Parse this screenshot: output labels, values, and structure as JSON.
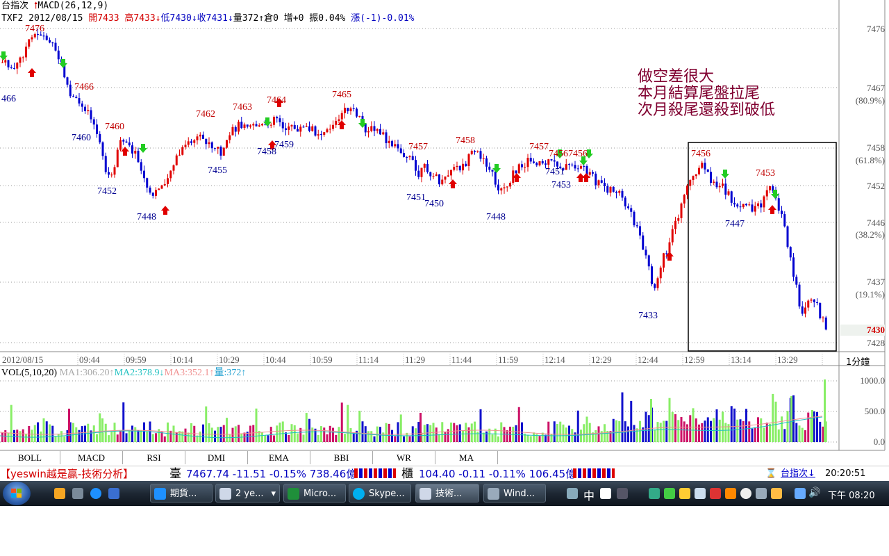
{
  "header": {
    "line1_name": "台指次",
    "line1_ind": "MACD(26,12,9)",
    "line2_sym": "TXF2 2012/08/15",
    "open": "開7433",
    "high": "高7433↓",
    "low": "低7430↓",
    "close": "收7431↓",
    "vol": "量372↑",
    "pos": "倉0",
    "inc": "增+0",
    "amp": "振0.04%",
    "chg": "漲(-1)-0.01%"
  },
  "annotation": {
    "line1": "做空差很大",
    "line2": "本月結算尾盤拉尾",
    "line3": "次月殺尾還殺到破低"
  },
  "y_axis": {
    "ticks": [
      "7476",
      "7467",
      "7458",
      "7452",
      "7446",
      "7437",
      "7428"
    ],
    "fib": [
      "(80.9%)",
      "(61.8%)",
      "(38.2%)",
      "(19.1%)"
    ],
    "current": "7430"
  },
  "x_axis": {
    "date": "2012/08/15",
    "ticks": [
      "09:44",
      "09:59",
      "10:14",
      "10:29",
      "10:44",
      "10:59",
      "11:14",
      "11:29",
      "11:44",
      "11:59",
      "12:14",
      "12:29",
      "12:44",
      "12:59",
      "13:14",
      "13:29"
    ],
    "period": "1分鐘"
  },
  "price_labels": {
    "highs": [
      "7476",
      "7466",
      "7460",
      "7462",
      "7463",
      "7464",
      "7465",
      "7457",
      "7458",
      "7457",
      "7456",
      "7456",
      "7456",
      "7453"
    ],
    "lows": [
      "466",
      "7460",
      "7452",
      "7448",
      "7455",
      "7458",
      "7459",
      "7451",
      "7450",
      "7448",
      "7451",
      "7453",
      "7433",
      "7447"
    ]
  },
  "volume": {
    "title": "VOL(5,10,20)",
    "ma1": "MA1:306.20↑",
    "ma2": "MA2:378.9↓",
    "ma3": "MA3:352.1↑",
    "amount": "量:372↑",
    "ticks": [
      "1000.0",
      "500.0",
      "0.0"
    ]
  },
  "tabs": [
    "BOLL",
    "MACD",
    "RSI",
    "DMI",
    "EMA",
    "BBI",
    "WR",
    "MA"
  ],
  "ticker": {
    "brand": "【yeswin越是贏-技術分析】",
    "twse_label": "臺",
    "twse": "7467.74 -11.51 -0.15% 738.46億",
    "otc_label": "櫃",
    "otc": "104.40 -0.11 -0.11% 106.45億",
    "selector": "台指次↓",
    "clock": "20:20:51"
  },
  "taskbar": {
    "buttons": [
      "期貨...",
      "2 ye...",
      "Micro...",
      "Skype...",
      "技術...",
      "Wind..."
    ],
    "ime": "中",
    "time": "下午 08:20"
  },
  "colors": {
    "up": "#e00000",
    "down": "#0000d0",
    "buy_arrow": "#e00000",
    "sell_arrow": "#22cc22"
  }
}
